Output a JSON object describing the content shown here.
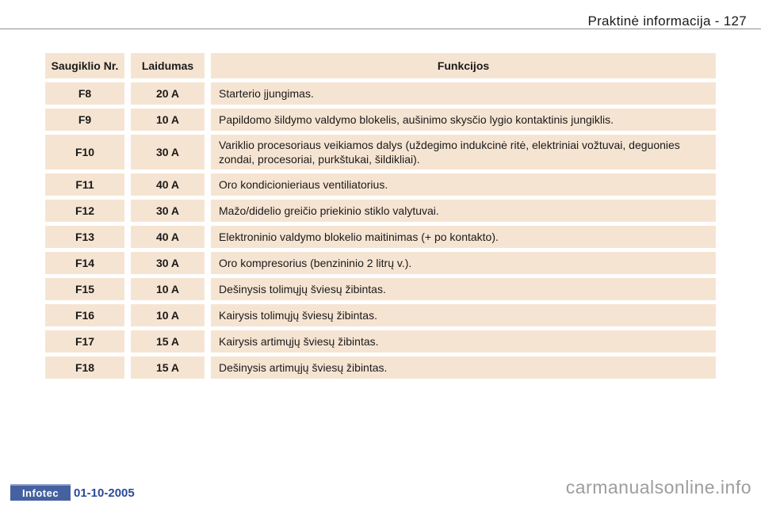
{
  "header": {
    "title": "Praktinė informacija - 127"
  },
  "table": {
    "headers": [
      "Saugiklio Nr.",
      "Laidumas",
      "Funkcijos"
    ],
    "rows": [
      {
        "fuse": "F8",
        "amps": "20 A",
        "function": "Starterio įjungimas."
      },
      {
        "fuse": "F9",
        "amps": "10 A",
        "function": "Papildomo šildymo valdymo blokelis, aušinimo skysčio lygio kontaktinis jungiklis."
      },
      {
        "fuse": "F10",
        "amps": "30 A",
        "function": "Variklio procesoriaus veikiamos dalys (uždegimo indukcinė ritė, elektriniai vožtuvai, deguonies zondai, procesoriai, purkštukai, šildikliai)."
      },
      {
        "fuse": "F11",
        "amps": "40 A",
        "function": "Oro kondicionieriaus ventiliatorius."
      },
      {
        "fuse": "F12",
        "amps": "30 A",
        "function": "Mažo/didelio greičio priekinio stiklo valytuvai."
      },
      {
        "fuse": "F13",
        "amps": "40 A",
        "function": "Elektroninio valdymo blokelio maitinimas (+ po kontakto)."
      },
      {
        "fuse": "F14",
        "amps": "30 A",
        "function": "Oro kompresorius (benzininio 2 litrų v.)."
      },
      {
        "fuse": "F15",
        "amps": "10 A",
        "function": "Dešinysis tolimųjų šviesų žibintas."
      },
      {
        "fuse": "F16",
        "amps": "10 A",
        "function": "Kairysis tolimųjų šviesų žibintas."
      },
      {
        "fuse": "F17",
        "amps": "15 A",
        "function": "Kairysis artimųjų šviesų žibintas."
      },
      {
        "fuse": "F18",
        "amps": "15 A",
        "function": "Dešinysis artimųjų šviesų žibintas."
      }
    ]
  },
  "footer": {
    "logo_text": "Infotec",
    "date": "01-10-2005",
    "watermark": "carmanualsonline.info"
  },
  "colors": {
    "cell_bg": "#f6e4d2",
    "logo_bg": "#45619f",
    "date_color": "#2b4a9c",
    "watermark_color": "#9d9d9d"
  }
}
